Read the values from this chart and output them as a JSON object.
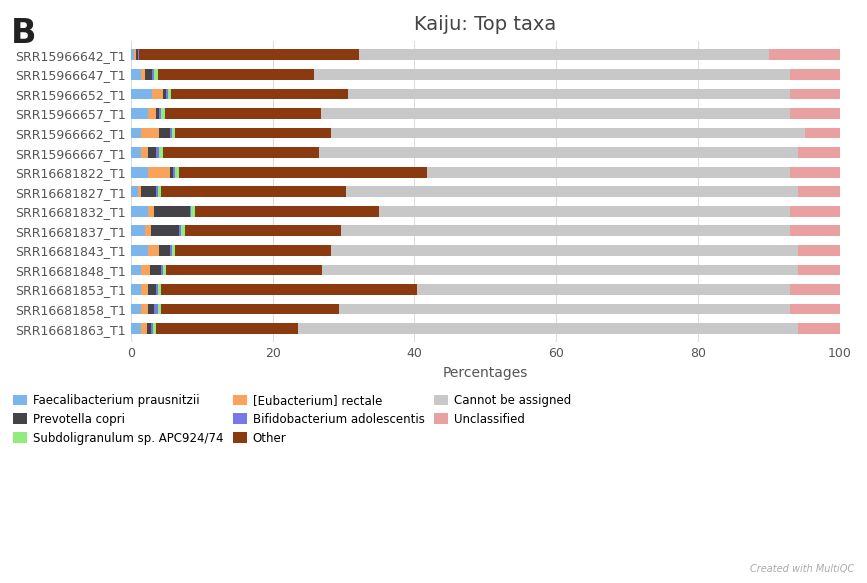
{
  "title": "Kaiju: Top taxa",
  "panel_label": "B",
  "xlabel": "Percentages",
  "samples": [
    "SRR15966642_T1",
    "SRR15966647_T1",
    "SRR15966652_T1",
    "SRR15966657_T1",
    "SRR15966662_T1",
    "SRR15966667_T1",
    "SRR16681822_T1",
    "SRR16681827_T1",
    "SRR16681832_T1",
    "SRR16681837_T1",
    "SRR16681843_T1",
    "SRR16681848_T1",
    "SRR16681853_T1",
    "SRR16681858_T1",
    "SRR16681863_T1"
  ],
  "categories": [
    "Faecalibacterium prausnitzii",
    "[Eubacterium] rectale",
    "Prevotella copri",
    "Bifidobacterium adolescentis",
    "Subdoligranulum sp. APC924/74",
    "Other",
    "Cannot be assigned",
    "Unclassified"
  ],
  "legend_order": [
    "Faecalibacterium prausnitzii",
    "Prevotella copri",
    "Subdoligranulum sp. APC924/74",
    "[Eubacterium] rectale",
    "Bifidobacterium adolescentis",
    "Other",
    "Cannot be assigned",
    "Unclassified"
  ],
  "colors": {
    "Faecalibacterium prausnitzii": "#7cb5ec",
    "[Eubacterium] rectale": "#f7a35c",
    "Prevotella copri": "#434348",
    "Bifidobacterium adolescentis": "#7878e8",
    "Subdoligranulum sp. APC924/74": "#90ed7d",
    "Other": "#8b3a0f",
    "Cannot be assigned": "#c8c8c8",
    "Unclassified": "#e8a0a0"
  },
  "data": {
    "Faecalibacterium prausnitzii": [
      0.5,
      1.5,
      3.0,
      2.5,
      1.5,
      1.5,
      2.5,
      1.0,
      2.5,
      2.0,
      2.5,
      1.5,
      1.5,
      1.5,
      1.5
    ],
    "[Eubacterium] rectale": [
      0.3,
      0.5,
      1.5,
      1.0,
      2.5,
      1.0,
      3.0,
      0.5,
      0.8,
      0.8,
      1.5,
      1.2,
      1.0,
      1.0,
      0.8
    ],
    "Prevotella copri": [
      0.2,
      1.0,
      0.5,
      0.5,
      1.5,
      1.0,
      0.5,
      2.0,
      5.0,
      4.0,
      1.5,
      1.5,
      1.0,
      0.8,
      0.5
    ],
    "Bifidobacterium adolescentis": [
      0.1,
      0.3,
      0.2,
      0.3,
      0.3,
      0.5,
      0.3,
      0.3,
      0.2,
      0.3,
      0.3,
      0.3,
      0.3,
      0.5,
      0.3
    ],
    "Subdoligranulum sp. APC924/74": [
      0.1,
      0.5,
      0.5,
      0.5,
      0.5,
      0.5,
      0.5,
      0.5,
      0.5,
      0.5,
      0.5,
      0.5,
      0.5,
      0.5,
      0.5
    ],
    "Other": [
      31.0,
      22.0,
      25.0,
      22.0,
      22.0,
      22.0,
      35.0,
      26.0,
      26.0,
      22.0,
      22.0,
      22.0,
      36.0,
      25.0,
      20.0
    ],
    "Cannot be assigned": [
      57.8,
      67.2,
      62.3,
      66.2,
      66.7,
      67.5,
      51.2,
      63.7,
      58.0,
      63.4,
      65.7,
      67.0,
      52.7,
      63.7,
      70.4
    ],
    "Unclassified": [
      10.0,
      7.0,
      7.0,
      7.0,
      5.0,
      6.0,
      7.0,
      6.0,
      7.0,
      7.0,
      6.0,
      6.0,
      7.0,
      7.0,
      6.0
    ]
  },
  "xlim": [
    0,
    100
  ],
  "xticks": [
    0,
    20,
    40,
    60,
    80,
    100
  ],
  "background_color": "#ffffff",
  "grid_color": "#dddddd",
  "title_fontsize": 14,
  "tick_fontsize": 9,
  "label_fontsize": 10,
  "bar_height": 0.55
}
